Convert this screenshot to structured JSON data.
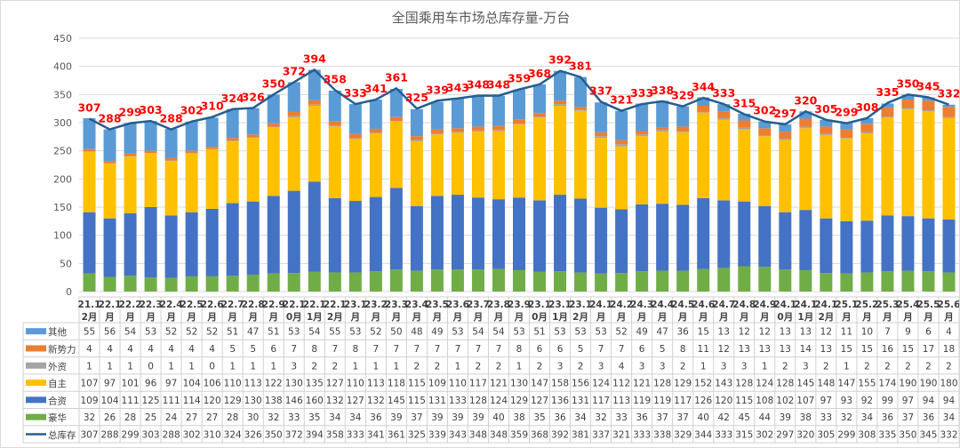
{
  "chart_data": {
    "type": "bar",
    "stacked": true,
    "title": "全国乘用车市场总库存量-万台",
    "ylim": [
      0,
      450
    ],
    "yticks": [
      0,
      50,
      100,
      150,
      200,
      250,
      300,
      350,
      400,
      450
    ],
    "grid": true,
    "legend": "table-bottom",
    "categories": [
      "21.12月",
      "22.1月",
      "22.2月",
      "22.3月",
      "22.4月",
      "22.5月",
      "22.6月",
      "22.7月",
      "22.8月",
      "22.9月",
      "22.10月",
      "22.11月",
      "22.12月",
      "23.1月",
      "23.2月",
      "23.3月",
      "23.4月",
      "23.5月",
      "23.6月",
      "23.7月",
      "23.8月",
      "23.9月",
      "23.10月",
      "23.11月",
      "23.12月",
      "24.1月",
      "24.2月",
      "24.3月",
      "24.4月",
      "24.5月",
      "24.6月",
      "24.7月",
      "24.8月",
      "24.9月",
      "24.10月",
      "24.11月",
      "24.12月",
      "25.1月",
      "25.2月",
      "25.3月",
      "25.4月",
      "25.5月",
      "25.6月"
    ],
    "series": [
      {
        "name": "其他",
        "kind": "bar",
        "color": "#5B9BD5",
        "values": [
          55,
          56,
          54,
          53,
          52,
          52,
          52,
          51,
          47,
          51,
          53,
          54,
          55,
          53,
          52,
          50,
          48,
          49,
          53,
          54,
          54,
          53,
          51,
          53,
          53,
          53,
          52,
          49,
          47,
          36,
          15,
          13,
          12,
          12,
          13,
          13,
          12,
          11,
          10,
          7,
          9,
          6,
          4
        ]
      },
      {
        "name": "新势力",
        "kind": "bar",
        "color": "#ED7D31",
        "values": [
          4,
          4,
          4,
          4,
          4,
          4,
          4,
          5,
          5,
          6,
          7,
          8,
          7,
          8,
          7,
          7,
          7,
          7,
          7,
          7,
          7,
          8,
          6,
          6,
          5,
          7,
          7,
          6,
          5,
          8,
          11,
          12,
          13,
          13,
          13,
          14,
          13,
          15,
          15,
          16,
          15,
          17,
          18
        ]
      },
      {
        "name": "外资",
        "kind": "bar",
        "color": "#A5A5A5",
        "values": [
          1,
          1,
          1,
          0,
          1,
          1,
          0,
          1,
          1,
          1,
          3,
          2,
          2,
          1,
          1,
          1,
          2,
          2,
          1,
          2,
          2,
          1,
          2,
          3,
          2,
          3,
          4,
          3,
          3,
          2,
          1,
          3,
          3,
          1,
          2,
          3,
          2,
          1,
          2,
          2,
          2,
          2,
          2
        ]
      },
      {
        "name": "自主",
        "kind": "bar",
        "color": "#FFC000",
        "values": [
          107,
          97,
          101,
          96,
          97,
          104,
          106,
          110,
          113,
          122,
          130,
          135,
          127,
          110,
          113,
          118,
          115,
          109,
          110,
          117,
          121,
          130,
          147,
          158,
          156,
          124,
          112,
          121,
          128,
          129,
          152,
          143,
          128,
          124,
          128,
          145,
          148,
          147,
          155,
          174,
          190,
          190,
          180
        ]
      },
      {
        "name": "合资",
        "kind": "bar",
        "color": "#4472C4",
        "values": [
          109,
          104,
          111,
          125,
          111,
          114,
          120,
          129,
          130,
          138,
          146,
          160,
          132,
          127,
          132,
          145,
          115,
          131,
          133,
          128,
          124,
          129,
          127,
          136,
          131,
          117,
          113,
          119,
          119,
          117,
          126,
          120,
          115,
          108,
          102,
          107,
          97,
          93,
          92,
          99,
          97,
          94,
          94
        ]
      },
      {
        "name": "豪华",
        "kind": "bar",
        "color": "#70AD47",
        "values": [
          32,
          26,
          28,
          25,
          24,
          27,
          27,
          28,
          30,
          32,
          33,
          35,
          34,
          34,
          36,
          39,
          37,
          39,
          39,
          39,
          40,
          38,
          35,
          36,
          34,
          32,
          33,
          36,
          37,
          37,
          40,
          42,
          45,
          44,
          39,
          38,
          33,
          32,
          34,
          36,
          37,
          36,
          34
        ]
      },
      {
        "name": "总库存",
        "kind": "line",
        "color": "#255E91",
        "label_color": "#FF0000",
        "values": [
          307,
          288,
          299,
          303,
          288,
          302,
          310,
          324,
          326,
          350,
          372,
          394,
          358,
          333,
          341,
          361,
          325,
          339,
          343,
          348,
          348,
          359,
          368,
          392,
          381,
          337,
          321,
          333,
          338,
          329,
          344,
          333,
          315,
          302,
          297,
          320,
          305,
          299,
          308,
          335,
          350,
          345,
          332
        ]
      }
    ]
  }
}
